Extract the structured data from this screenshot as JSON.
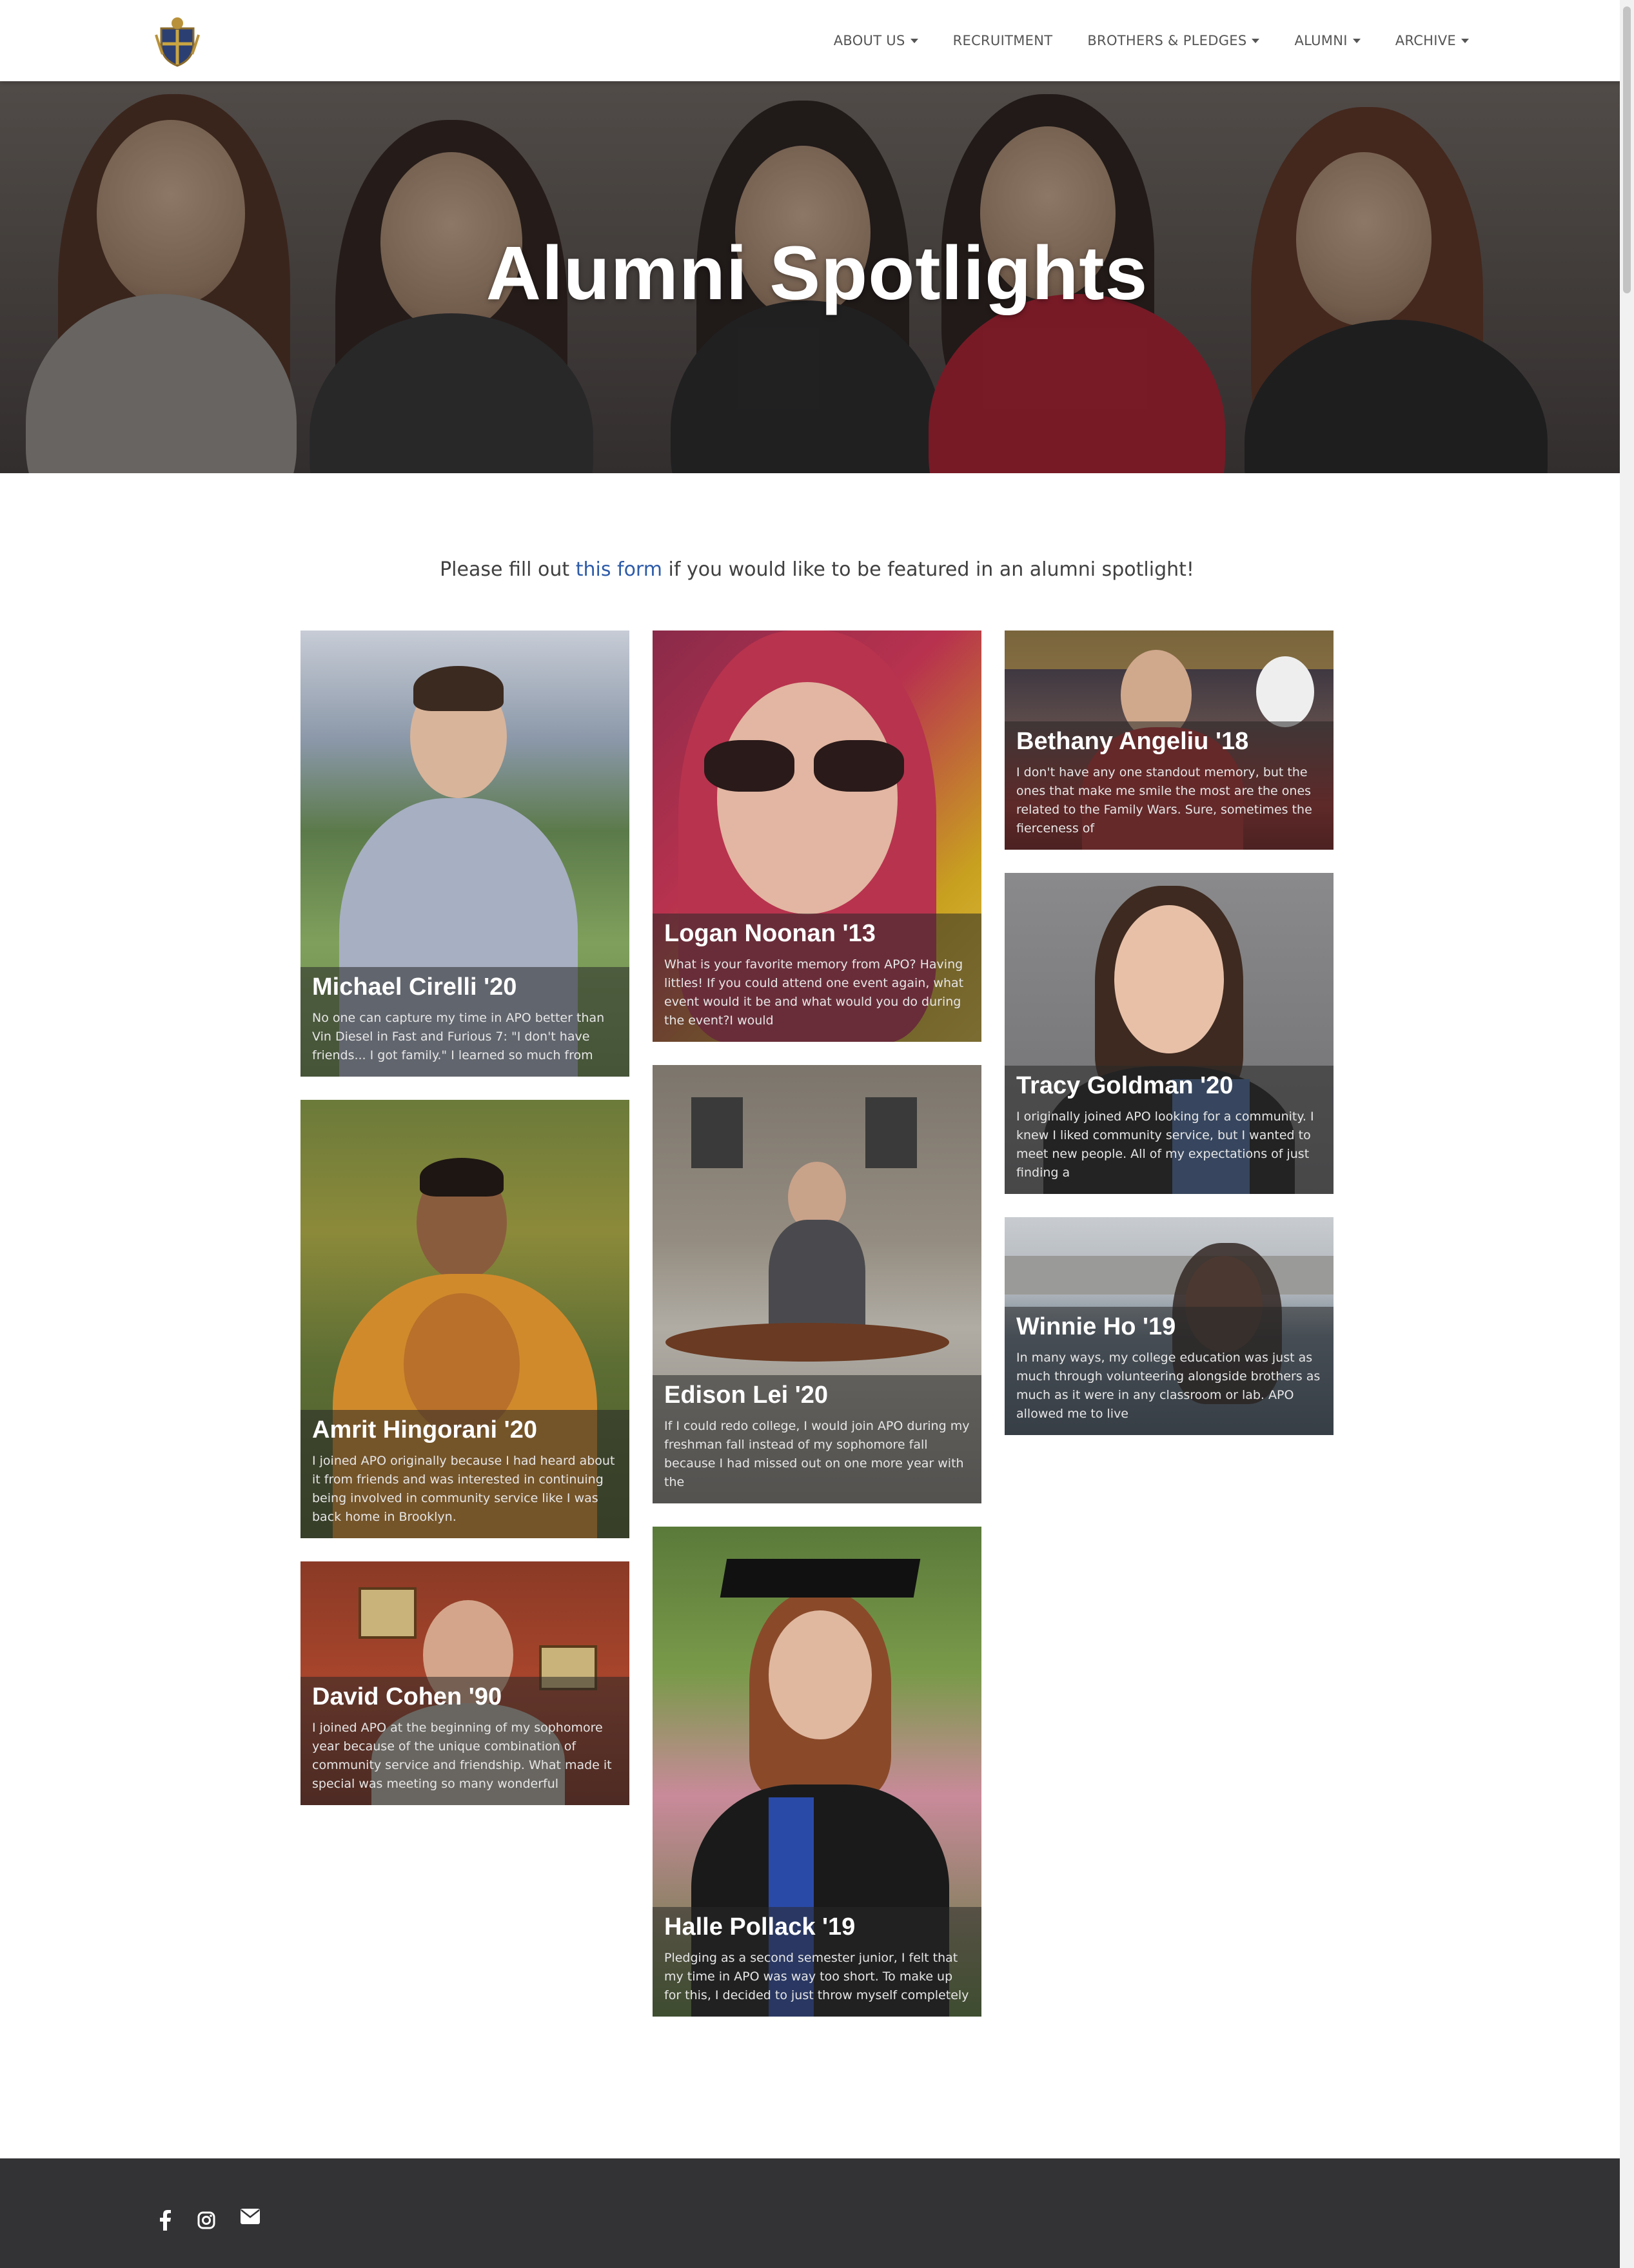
{
  "nav": {
    "logo": "crest-logo",
    "items": [
      {
        "label": "ABOUT US",
        "dropdown": true
      },
      {
        "label": "RECRUITMENT",
        "dropdown": false
      },
      {
        "label": "BROTHERS & PLEDGES",
        "dropdown": true
      },
      {
        "label": "ALUMNI",
        "dropdown": true
      },
      {
        "label": "ARCHIVE",
        "dropdown": true
      }
    ]
  },
  "hero": {
    "title": "Alumni Spotlights"
  },
  "intro": {
    "before": "Please fill out ",
    "link": "this form",
    "after": " if you would like to be featured in an alumni spotlight!"
  },
  "cards": [
    {
      "name": "Michael Cirelli '20",
      "text": "No one can capture my time in APO better than Vin Diesel in Fast and Furious 7: \"I don't have friends... I got family.\" I learned so much from"
    },
    {
      "name": "Amrit Hingorani '20",
      "text": "I joined APO originally because I had heard about it from friends and was interested in continuing being involved in community service like I was back home in Brooklyn."
    },
    {
      "name": "David Cohen '90",
      "text": "I joined APO at the beginning of my sophomore year because of the unique combination of community service and friendship. What made it special was meeting so many wonderful"
    },
    {
      "name": "Logan Noonan '13",
      "text": "What is your favorite memory from APO? Having littles! If you could attend one event again, what event would it be and what would you do during the event?I would"
    },
    {
      "name": "Edison Lei '20",
      "text": "If I could redo college, I would join APO during my freshman fall instead of my sophomore fall because I had missed out on one more year with the"
    },
    {
      "name": "Halle Pollack '19",
      "text": "Pledging as a second semester junior, I felt that my time in APO was way too short. To make up for this, I decided to just throw myself completely"
    },
    {
      "name": "Bethany Angeliu '18",
      "text": "I don't have any one standout memory, but the ones that make me smile the most are the ones related to the Family Wars. Sure, sometimes the fierceness of"
    },
    {
      "name": "Tracy Goldman '20",
      "text": "I originally joined APO looking for a community. I knew I liked community service, but I wanted to meet new people. All of my expectations of just finding a"
    },
    {
      "name": "Winnie Ho '19",
      "text": "In many ways, my college education was just as much through volunteering alongside brothers as much as it were in any classroom or lab. APO allowed me to live"
    }
  ],
  "footer": {
    "icons": [
      "facebook-icon",
      "instagram-icon",
      "email-icon"
    ]
  },
  "colors": {
    "link": "#2d5ba8",
    "footer": "#333336",
    "overlay": "rgba(40,40,40,0.55)"
  }
}
